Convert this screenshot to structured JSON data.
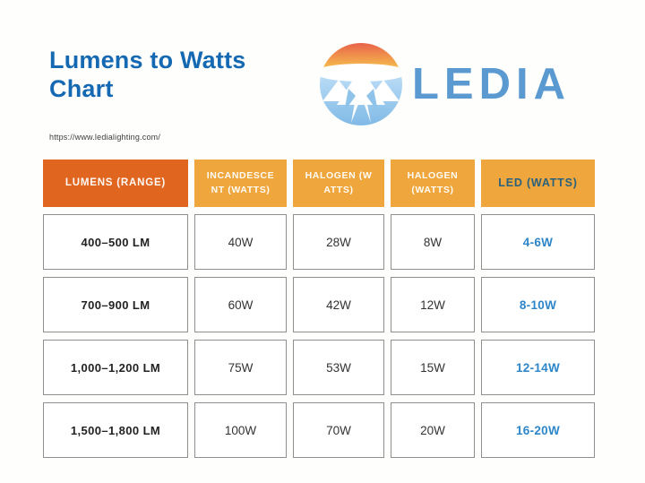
{
  "page": {
    "title": "Lumens to Watts Chart",
    "url": "https://www.ledialighting.com/"
  },
  "logo": {
    "brand": "LEDIA",
    "icon": "sun-mountain-circle-icon"
  },
  "colors": {
    "title_blue": "#1569b2",
    "lumens_header_bg": "#e0661f",
    "watts_header_bg": "#efa63c",
    "header_text": "#ffffff",
    "led_header_text": "#2a617c",
    "led_value_blue": "#2e86c9",
    "wordmark_blue": "#5b9ad0",
    "cell_border": "#8f8f8f"
  },
  "chart_data": {
    "type": "table",
    "title": "Lumens to Watts Chart",
    "columns": [
      "LUMENS (RANGE)",
      "INCANDESCENT (WATTS)",
      "HALOGEN (WATTS)",
      "HALOGEN (WATTS)",
      "LED (WATTS)"
    ],
    "rows": [
      [
        "400–500 LM",
        "40W",
        "28W",
        "8W",
        "4-6W"
      ],
      [
        "700–900 LM",
        "60W",
        "42W",
        "12W",
        "8-10W"
      ],
      [
        "1,000–1,200 LM",
        "75W",
        "53W",
        "15W",
        "12-14W"
      ],
      [
        "1,500–1,800 LM",
        "100W",
        "70W",
        "20W",
        "16-20W"
      ]
    ]
  }
}
